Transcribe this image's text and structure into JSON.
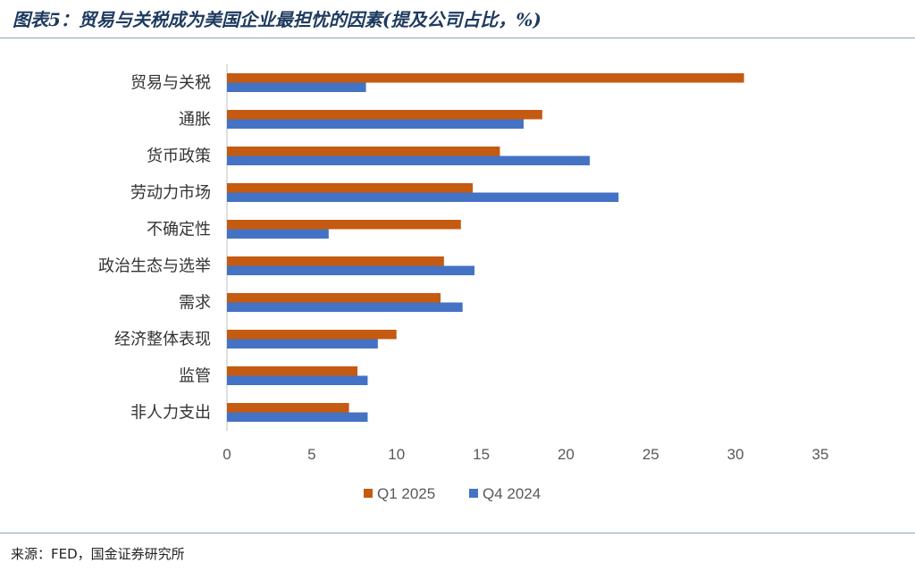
{
  "figure": {
    "title": "图表5：贸易与关税成为美国企业最担忧的因素(提及公司占比，%)",
    "source": "来源：FED，国金证券研究所"
  },
  "chart_data": {
    "type": "bar",
    "orientation": "horizontal",
    "categories": [
      "贸易与关税",
      "通胀",
      "货币政策",
      "劳动力市场",
      "不确定性",
      "政治生态与选举",
      "需求",
      "经济整体表现",
      "监管",
      "非人力支出"
    ],
    "series": [
      {
        "name": "Q1 2025",
        "color": "#c55a11",
        "values": [
          30.5,
          18.6,
          16.1,
          14.5,
          13.8,
          12.8,
          12.6,
          10.0,
          7.7,
          7.2
        ]
      },
      {
        "name": "Q4 2024",
        "color": "#4472c4",
        "values": [
          8.2,
          17.5,
          21.4,
          23.1,
          6.0,
          14.6,
          13.9,
          8.9,
          8.3,
          8.3
        ]
      }
    ],
    "xlim": [
      0,
      35
    ],
    "xticks": [
      "0",
      "5",
      "10",
      "15",
      "20",
      "25",
      "30",
      "35"
    ],
    "grid": false,
    "legend_position": "bottom"
  }
}
